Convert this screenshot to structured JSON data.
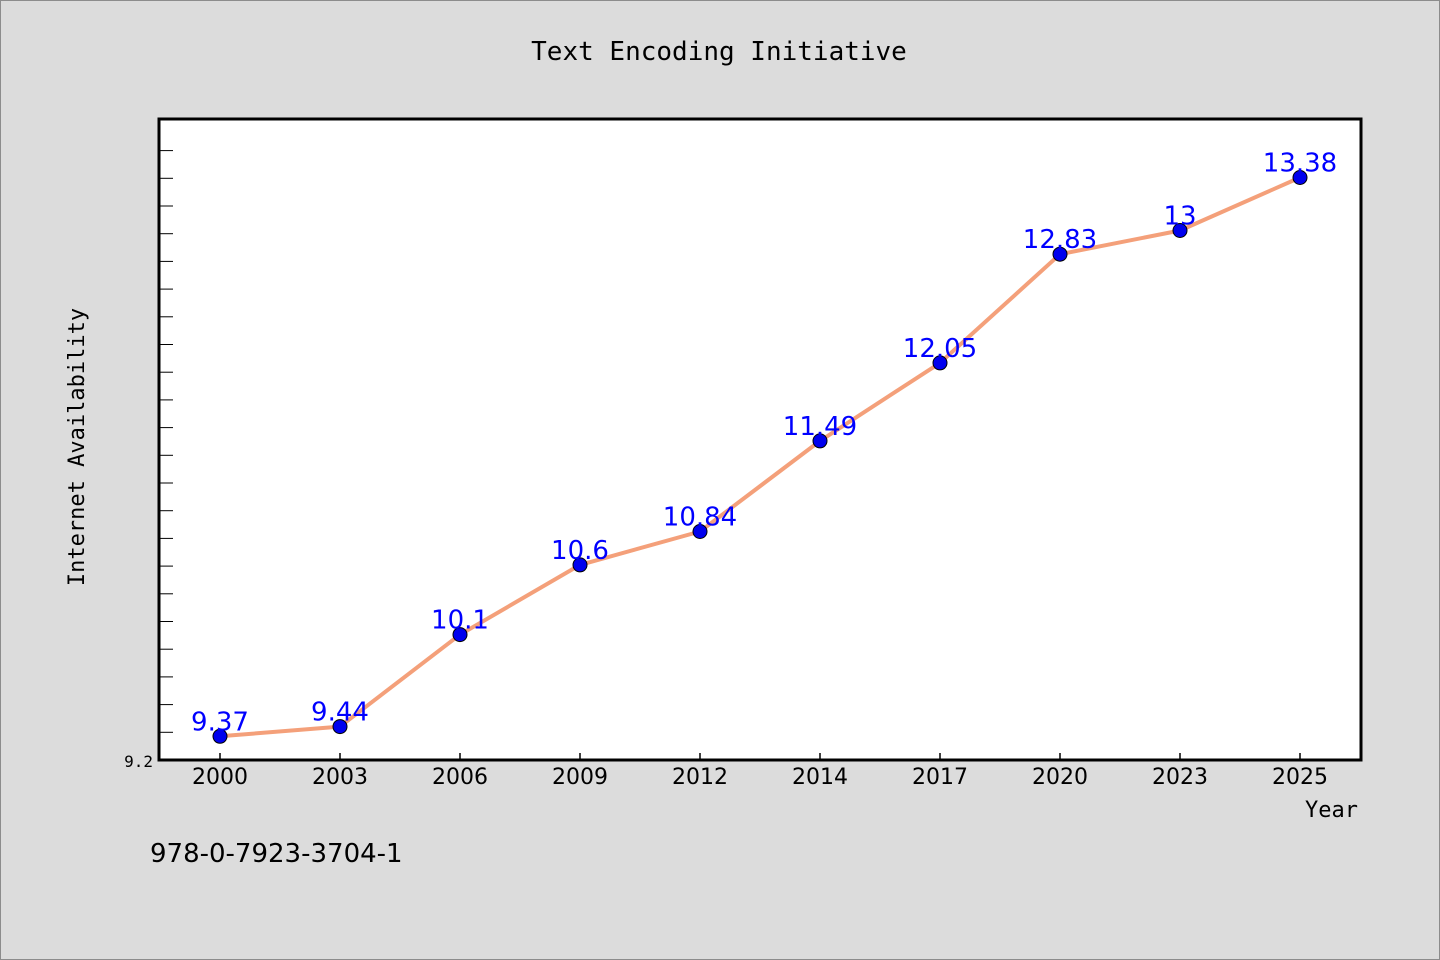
{
  "chart_data": {
    "type": "line",
    "title": "Text Encoding Initiative",
    "xlabel": "Year",
    "ylabel": "Internet Availability",
    "categories": [
      "2000",
      "2003",
      "2006",
      "2009",
      "2012",
      "2014",
      "2017",
      "2020",
      "2023",
      "2025"
    ],
    "series": [
      {
        "values": [
          9.37,
          9.44,
          10.1,
          10.6,
          10.84,
          11.49,
          12.05,
          12.83,
          13,
          13.38
        ]
      }
    ],
    "data_labels": [
      "9.37",
      "9.44",
      "10.1",
      "10.6",
      "10.84",
      "11.49",
      "12.05",
      "12.83",
      "13",
      "13.38"
    ],
    "y_tick_label": "9.2",
    "ylim": [
      9.2,
      13.8
    ],
    "grid": false,
    "line_color": "#f4a07a",
    "marker_color": "#0000ee",
    "label_color": "#0000ff"
  },
  "footer_code": "978-0-7923-3704-1"
}
